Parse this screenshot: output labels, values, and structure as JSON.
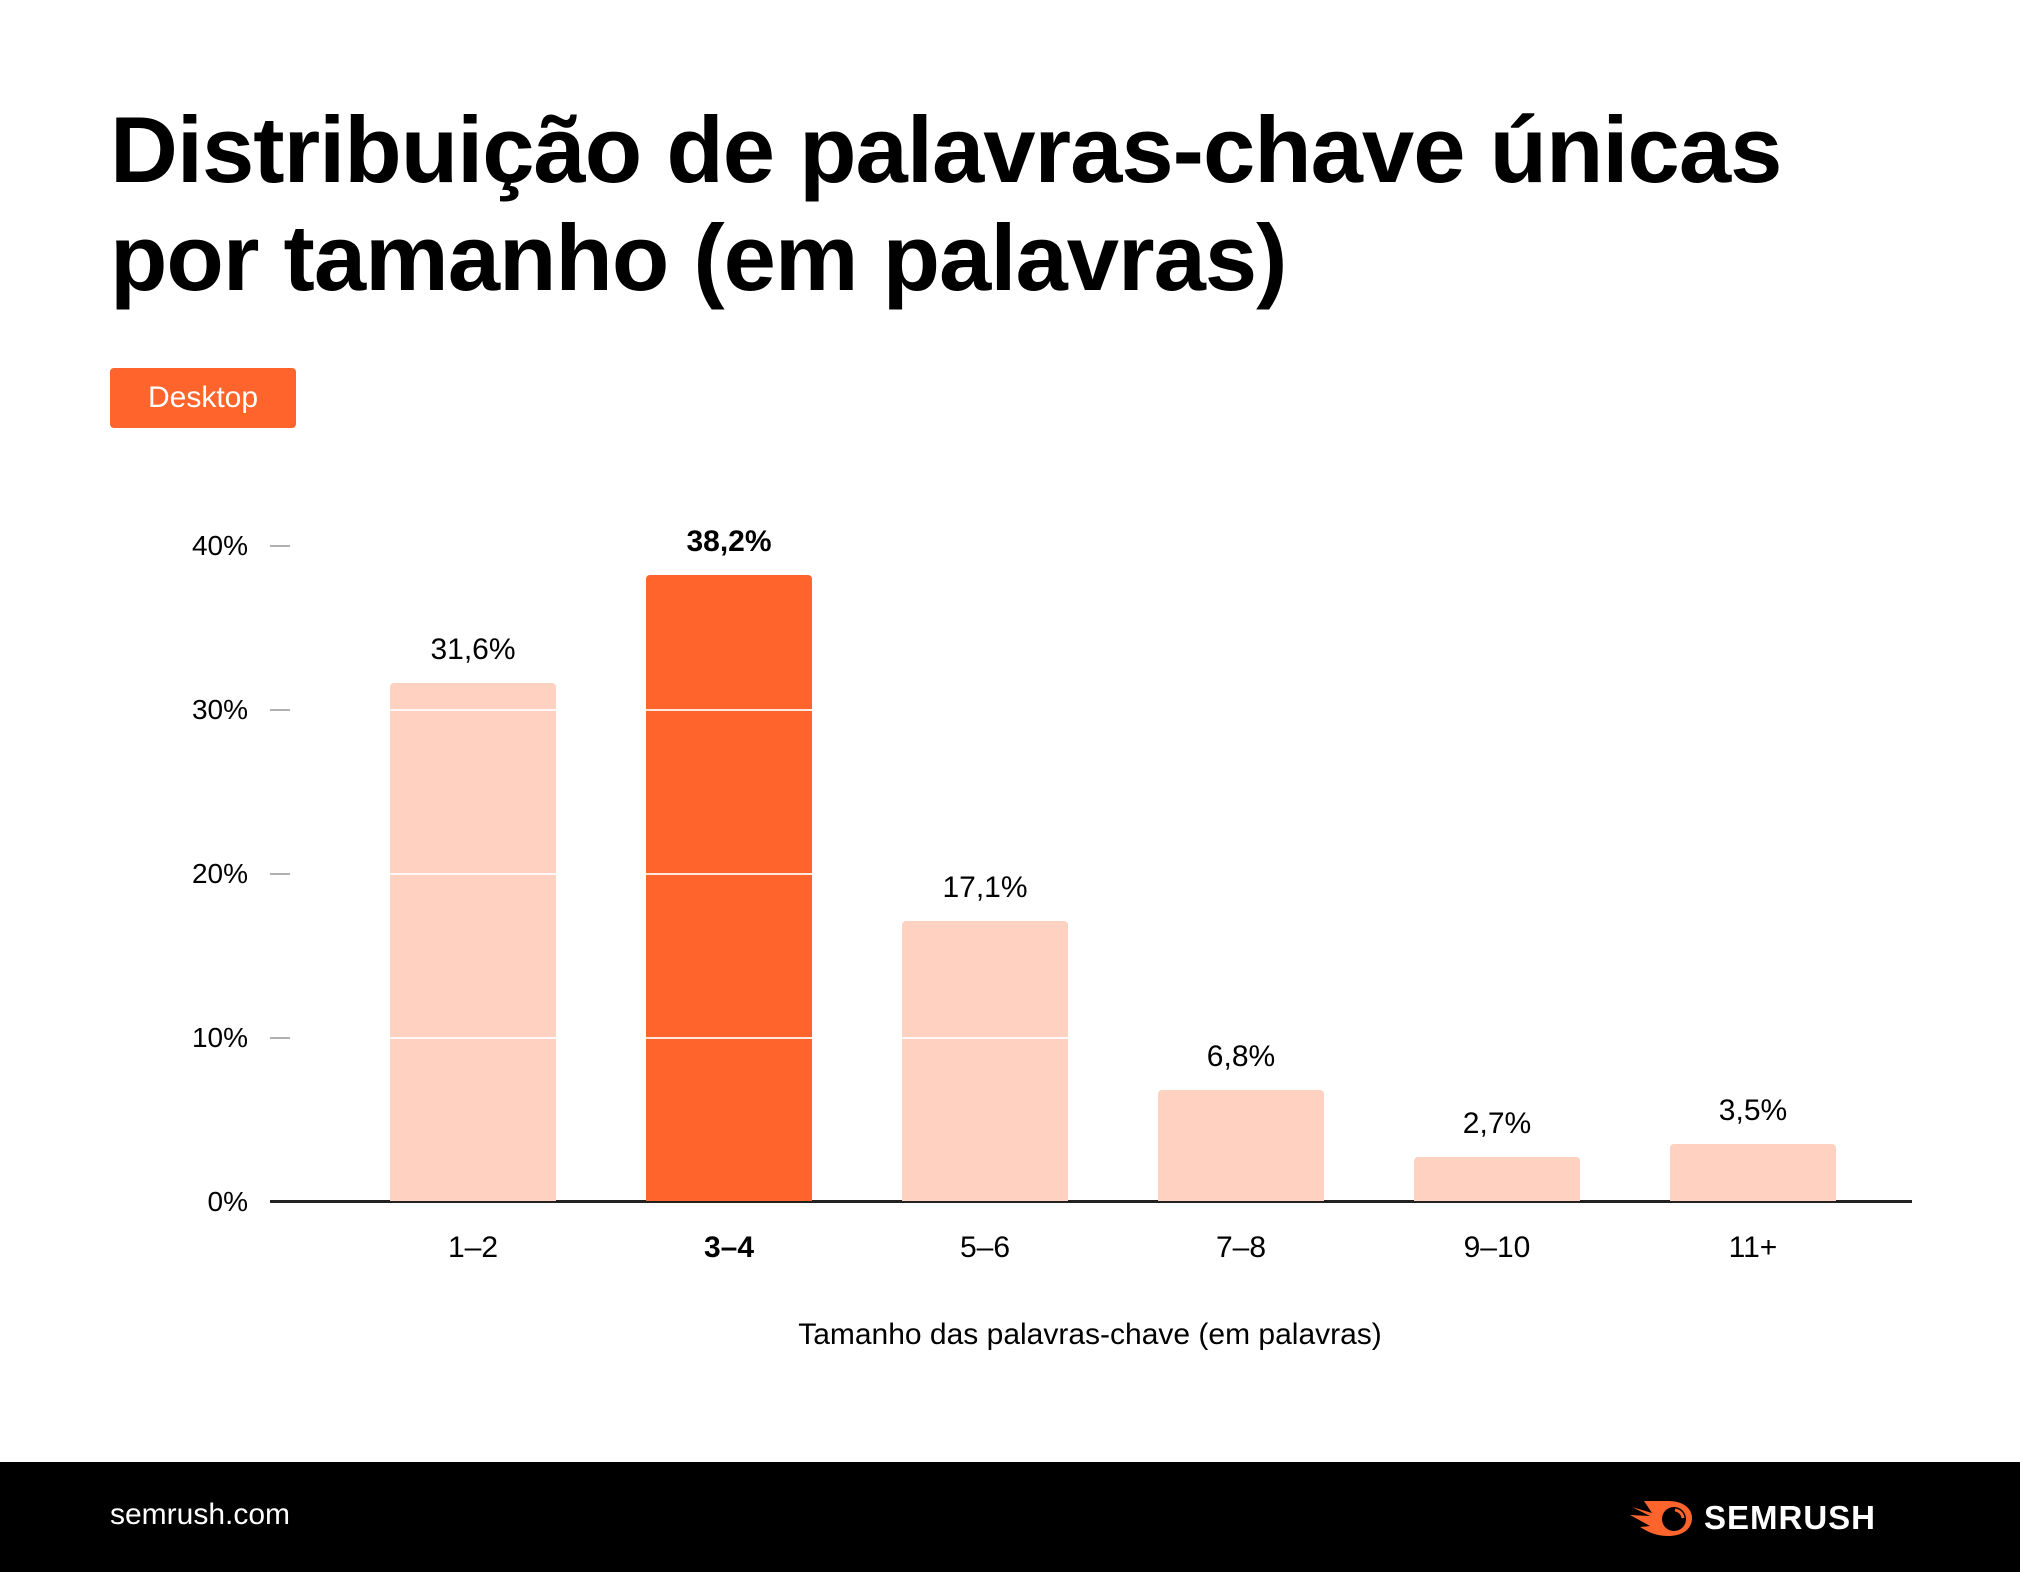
{
  "title": {
    "line1": "Distribuição de palavras-chave únicas",
    "line2": "por tamanho (em palavras)"
  },
  "badge": {
    "label": "Desktop",
    "color": "#FF642D"
  },
  "colors": {
    "highlight": "#FF642D",
    "muted": "#FFD1C1",
    "axis": "#222222",
    "tick": "#B0B0B0"
  },
  "chart_data": {
    "type": "bar",
    "title": "Distribuição de palavras-chave únicas por tamanho (em palavras)",
    "subtitle": "Desktop",
    "categories": [
      "1–2",
      "3–4",
      "5–6",
      "7–8",
      "9–10",
      "11+"
    ],
    "values": [
      31.6,
      38.2,
      17.1,
      6.8,
      2.7,
      3.5
    ],
    "value_labels": [
      "31,6%",
      "38,2%",
      "17,1%",
      "6,8%",
      "2,7%",
      "3,5%"
    ],
    "highlight_index": 1,
    "xlabel": "Tamanho das palavras-chave (em palavras)",
    "ylabel": "",
    "yticks": [
      "0%",
      "10%",
      "20%",
      "30%",
      "40%"
    ],
    "ylim": [
      0,
      40
    ],
    "grid": true,
    "legend": null
  },
  "footer": {
    "site": "semrush.com",
    "brand": "SEMRUSH"
  }
}
